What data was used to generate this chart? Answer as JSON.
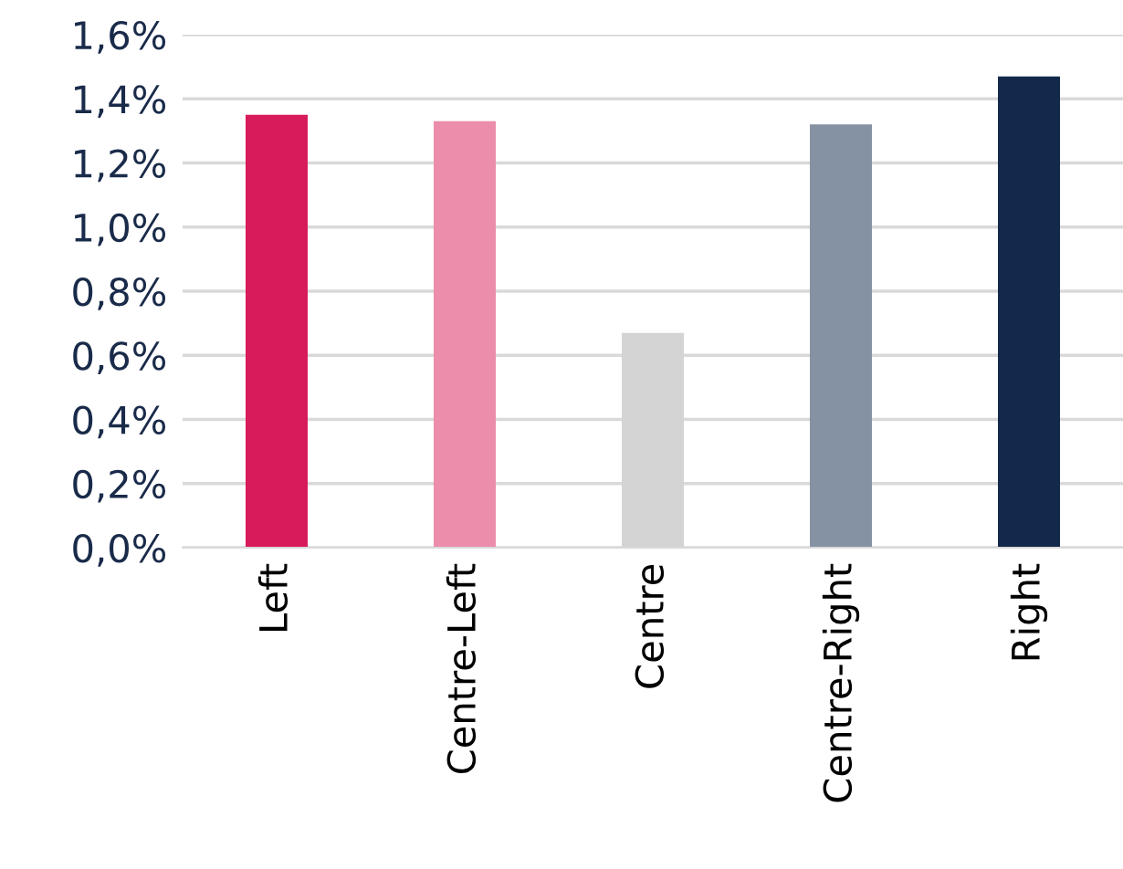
{
  "chart_data": {
    "type": "bar",
    "categories": [
      "Left",
      "Centre-Left",
      "Centre",
      "Centre-Right",
      "Right"
    ],
    "values": [
      1.35,
      1.33,
      0.67,
      1.32,
      1.47
    ],
    "colors": [
      "#d81b5a",
      "#ec8dab",
      "#d4d4d4",
      "#8592a3",
      "#13294b"
    ],
    "ylim": [
      0,
      1.6
    ],
    "yticks": [
      {
        "value": 0,
        "label": "0,0%"
      },
      {
        "value": 0.2,
        "label": "0,2%"
      },
      {
        "value": 0.4,
        "label": "0,4%"
      },
      {
        "value": 0.6,
        "label": "0,6%"
      },
      {
        "value": 0.8,
        "label": "0,8%"
      },
      {
        "value": 1.0,
        "label": "1,0%"
      },
      {
        "value": 1.2,
        "label": "1,2%"
      },
      {
        "value": 1.4,
        "label": "1,4%"
      },
      {
        "value": 1.6,
        "label": "1,6%"
      }
    ],
    "grid": "y"
  }
}
